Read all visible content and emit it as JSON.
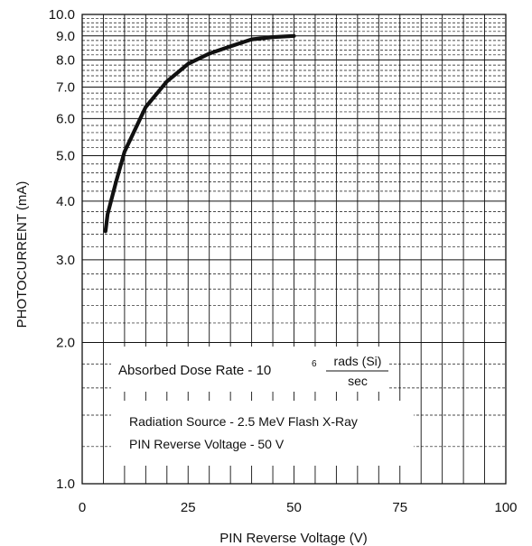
{
  "chart_data": {
    "type": "line",
    "xlabel": "PIN Reverse Voltage (V)",
    "ylabel": "PHOTOCURRENT (mA)",
    "xlim": [
      0,
      100
    ],
    "ylim": [
      1.0,
      10.0
    ],
    "y_scale": "log",
    "grid": true,
    "x_ticks": [
      "0",
      "25",
      "50",
      "75",
      "100"
    ],
    "y_ticks": [
      "1.0",
      "2.0",
      "3.0",
      "4.0",
      "5.0",
      "6.0",
      "7.0",
      "8.0",
      "9.0",
      "10.0"
    ],
    "series": [
      {
        "x": [
          5.5,
          6,
          8,
          10,
          15,
          20,
          25,
          30,
          35,
          40,
          45,
          50
        ],
        "values": [
          3.45,
          3.75,
          4.4,
          5.1,
          6.35,
          7.2,
          7.85,
          8.25,
          8.55,
          8.85,
          8.95,
          9.0
        ]
      }
    ],
    "annotations": {
      "dose_prefix": "Absorbed Dose Rate  -  10",
      "dose_exponent": "6",
      "dose_units_num": "rads (Si)",
      "dose_units_den": "sec",
      "source_line": "Radiation Source - 2.5 MeV Flash X-Ray",
      "voltage_line": "PIN Reverse Voltage - 50 V"
    }
  }
}
